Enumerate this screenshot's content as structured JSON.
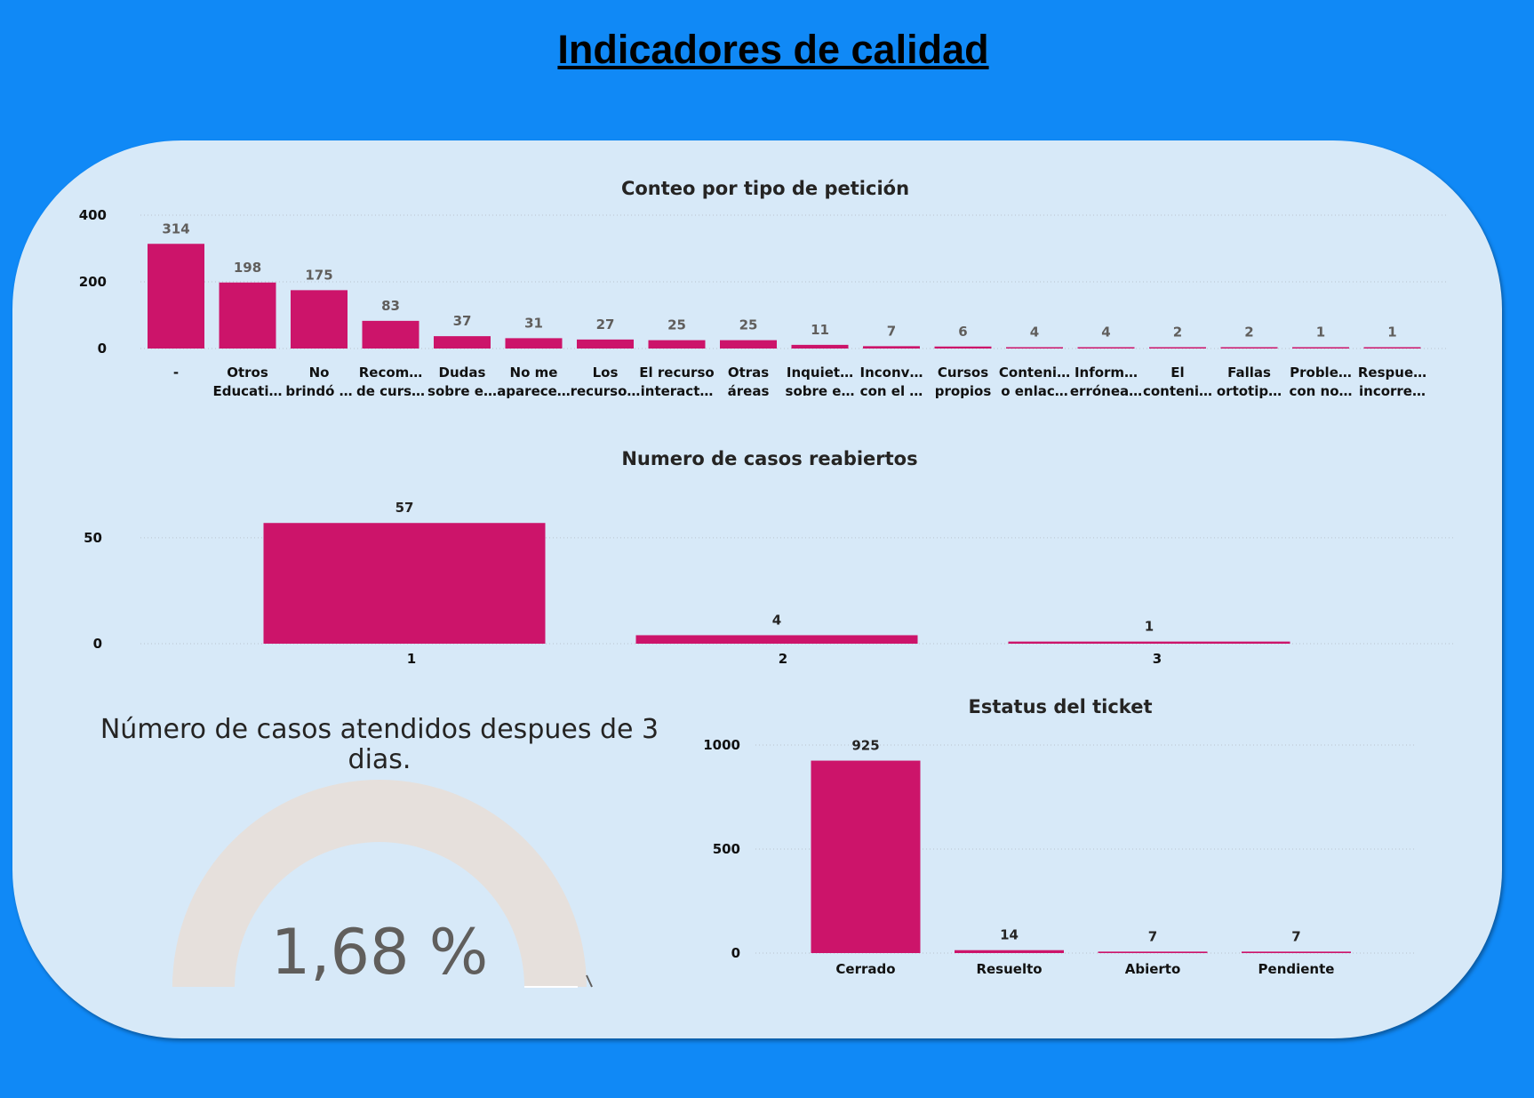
{
  "page": {
    "title": "Indicadores de calidad"
  },
  "colors": {
    "background": "#1089f6",
    "panel": "#d7e9f8",
    "bar": "#cc146a",
    "gauge_track": "#e6e0dc"
  },
  "chart_data": [
    {
      "id": "peticion",
      "type": "bar",
      "title": "Conteo por tipo de petición",
      "categories": [
        [
          "-"
        ],
        [
          "Otros",
          "Educati…"
        ],
        [
          "No",
          "brindó …"
        ],
        [
          "Recom…",
          "de curs…"
        ],
        [
          "Dudas",
          "sobre e…"
        ],
        [
          "No me",
          "aparece…"
        ],
        [
          "Los",
          "recurso…"
        ],
        [
          "El recurso",
          "interact…"
        ],
        [
          "Otras",
          "áreas"
        ],
        [
          "Inquiet…",
          "sobre e…"
        ],
        [
          "Inconv…",
          "con el …"
        ],
        [
          "Cursos",
          "propios"
        ],
        [
          "Conteni…",
          "o enlac…"
        ],
        [
          "Inform…",
          "erróneа…"
        ],
        [
          "El",
          "conteni…"
        ],
        [
          "Fallas",
          "ortotip…"
        ],
        [
          "Proble…",
          "con no…"
        ],
        [
          "Respue…",
          "incorre…"
        ]
      ],
      "values": [
        314,
        198,
        175,
        83,
        37,
        31,
        27,
        25,
        25,
        11,
        7,
        6,
        4,
        4,
        2,
        2,
        1,
        1
      ],
      "yticks": [
        0,
        200,
        400
      ],
      "ylim": [
        0,
        400
      ],
      "grid": true
    },
    {
      "id": "reabiertos",
      "type": "bar",
      "title": "Numero de casos reabiertos",
      "categories": [
        [
          "1"
        ],
        [
          "2"
        ],
        [
          "3"
        ]
      ],
      "values": [
        57,
        4,
        1
      ],
      "yticks": [
        0,
        50
      ],
      "ylim": [
        0,
        57
      ],
      "grid": true
    },
    {
      "id": "estatus",
      "type": "bar",
      "title": "Estatus del ticket",
      "categories": [
        [
          "Cerrado"
        ],
        [
          "Resuelto"
        ],
        [
          "Abierto"
        ],
        [
          "Pendiente"
        ]
      ],
      "values": [
        925,
        14,
        7,
        7
      ],
      "yticks": [
        0,
        500,
        1000
      ],
      "ylim": [
        0,
        1000
      ],
      "grid": true
    }
  ],
  "gauge": {
    "title_lines": [
      "Número de casos atendidos despues de 3",
      "dias."
    ],
    "value_text": "1,68 %",
    "value": 1.68
  }
}
